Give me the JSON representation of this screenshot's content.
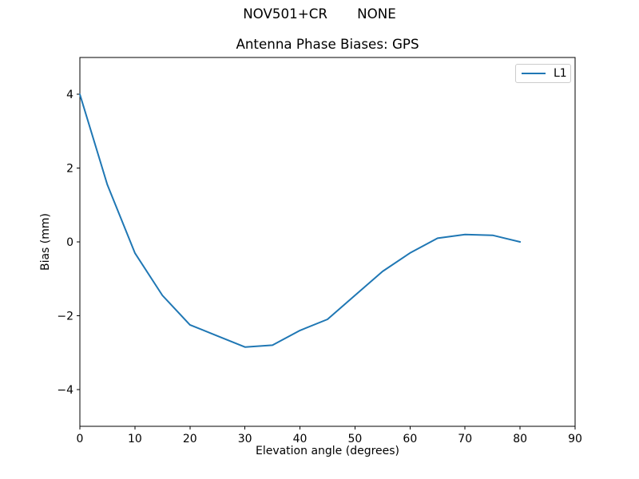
{
  "figure": {
    "suptitle": "NOV501+CR       NONE",
    "background": "#ffffff"
  },
  "chart_data": {
    "type": "line",
    "title": "Antenna Phase Biases: GPS",
    "xlabel": "Elevation angle (degrees)",
    "ylabel": "Bias (mm)",
    "xlim": [
      0,
      90
    ],
    "ylim": [
      -5,
      5
    ],
    "xticks": [
      0,
      10,
      20,
      30,
      40,
      50,
      60,
      70,
      80,
      90
    ],
    "xtick_labels": [
      "0",
      "10",
      "20",
      "30",
      "40",
      "50",
      "60",
      "70",
      "80",
      "90"
    ],
    "yticks": [
      -4,
      -2,
      0,
      2,
      4
    ],
    "ytick_labels": [
      "−4",
      "−2",
      "0",
      "2",
      "4"
    ],
    "grid": false,
    "axis_color": "#000000",
    "legend": {
      "position": "upper right",
      "entries": [
        {
          "label": "L1",
          "color": "#1f77b4"
        }
      ]
    },
    "series": [
      {
        "name": "L1",
        "color": "#1f77b4",
        "x": [
          0,
          5,
          10,
          15,
          20,
          25,
          30,
          35,
          40,
          45,
          50,
          55,
          60,
          65,
          70,
          75,
          80
        ],
        "y": [
          4.0,
          1.55,
          -0.3,
          -1.45,
          -2.25,
          -2.55,
          -2.85,
          -2.8,
          -2.4,
          -2.1,
          -1.45,
          -0.8,
          -0.3,
          0.1,
          0.2,
          0.18,
          0.0
        ]
      }
    ]
  }
}
